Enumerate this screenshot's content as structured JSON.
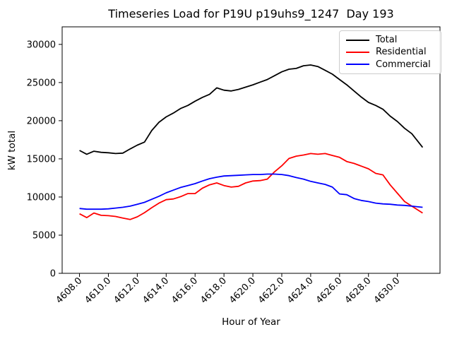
{
  "chart_data": {
    "type": "line",
    "title": "Timeseries Load for P19U p19uhs9_1247  Day 193",
    "xlabel": "Hour of Year",
    "ylabel": "kW total",
    "xlim": [
      4606.8,
      4632.95
    ],
    "ylim": [
      0,
      32300
    ],
    "grid": false,
    "legend_position": "upper right",
    "xticks": [
      4608,
      4610,
      4612,
      4614,
      4616,
      4618,
      4620,
      4622,
      4624,
      4626,
      4628,
      4630
    ],
    "xtick_labels": [
      "4608.0",
      "4610.0",
      "4612.0",
      "4614.0",
      "4616.0",
      "4618.0",
      "4620.0",
      "4622.0",
      "4624.0",
      "4626.0",
      "4628.0",
      "4630.0"
    ],
    "yticks": [
      0,
      5000,
      10000,
      15000,
      20000,
      25000,
      30000
    ],
    "ytick_labels": [
      "0",
      "5000",
      "10000",
      "15000",
      "20000",
      "25000",
      "30000"
    ],
    "x": [
      4608,
      4608.5,
      4609,
      4609.5,
      4610,
      4610.5,
      4611,
      4611.5,
      4612,
      4612.5,
      4613,
      4613.5,
      4614,
      4614.5,
      4615,
      4615.5,
      4616,
      4616.5,
      4617,
      4617.5,
      4618,
      4618.5,
      4619,
      4619.5,
      4620,
      4620.5,
      4621,
      4621.5,
      4622,
      4622.5,
      4623,
      4623.5,
      4624,
      4624.5,
      4625,
      4625.5,
      4626,
      4626.5,
      4627,
      4627.5,
      4628,
      4628.5,
      4629,
      4629.5,
      4630,
      4630.5,
      4631,
      4631.5,
      4631.75
    ],
    "series": [
      {
        "name": "Total",
        "color": "#000000",
        "values": [
          16100,
          15600,
          16000,
          15850,
          15800,
          15700,
          15750,
          16300,
          16800,
          17200,
          18700,
          19800,
          20500,
          21000,
          21600,
          22000,
          22550,
          23050,
          23450,
          24300,
          24000,
          23900,
          24100,
          24400,
          24700,
          25050,
          25400,
          25900,
          26400,
          26750,
          26850,
          27200,
          27300,
          27100,
          26600,
          26100,
          25400,
          24700,
          23900,
          23100,
          22400,
          22000,
          21500,
          20600,
          19900,
          19000,
          18300,
          17100,
          16500
        ]
      },
      {
        "name": "Residential",
        "color": "#ff0000",
        "values": [
          7800,
          7300,
          7900,
          7600,
          7550,
          7450,
          7250,
          7050,
          7400,
          7950,
          8600,
          9200,
          9650,
          9750,
          10050,
          10450,
          10450,
          11150,
          11600,
          11850,
          11500,
          11300,
          11400,
          11850,
          12100,
          12150,
          12350,
          13300,
          14100,
          15050,
          15350,
          15500,
          15700,
          15600,
          15700,
          15450,
          15200,
          14650,
          14400,
          14050,
          13700,
          13100,
          12900,
          11600,
          10500,
          9400,
          8800,
          8200,
          7900
        ]
      },
      {
        "name": "Commercial",
        "color": "#0000ff",
        "values": [
          8500,
          8400,
          8400,
          8400,
          8450,
          8550,
          8650,
          8800,
          9050,
          9300,
          9700,
          10100,
          10550,
          10900,
          11250,
          11500,
          11750,
          12100,
          12400,
          12600,
          12750,
          12800,
          12850,
          12900,
          12950,
          12950,
          13000,
          13000,
          12950,
          12800,
          12550,
          12350,
          12050,
          11850,
          11650,
          11300,
          10400,
          10300,
          9800,
          9550,
          9400,
          9200,
          9100,
          9050,
          8950,
          8900,
          8800,
          8700,
          8650
        ]
      }
    ]
  }
}
